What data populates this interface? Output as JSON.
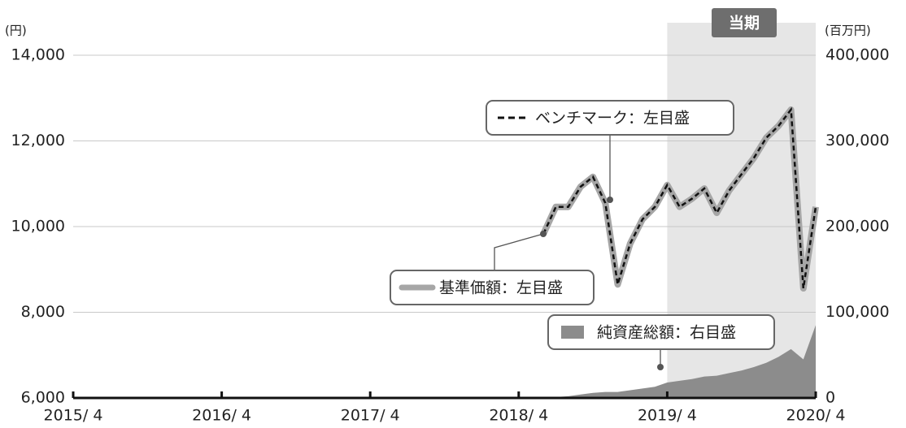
{
  "chart_data": {
    "type": "line",
    "y_axis_unit": "(円)",
    "y2_axis_unit": "(百万円)",
    "xlim": [
      "2015/4",
      "2020/4"
    ],
    "xticks": [
      {
        "value": "2015/4",
        "label": "2015/ 4"
      },
      {
        "value": "2016/4",
        "label": "2016/ 4"
      },
      {
        "value": "2017/4",
        "label": "2017/ 4"
      },
      {
        "value": "2018/4",
        "label": "2018/ 4"
      },
      {
        "value": "2019/4",
        "label": "2019/ 4"
      },
      {
        "value": "2020/4",
        "label": "2020/ 4"
      }
    ],
    "ylim": [
      6000,
      14000
    ],
    "yticks": [
      {
        "value": 6000,
        "label": "6,000"
      },
      {
        "value": 8000,
        "label": "8,000"
      },
      {
        "value": 10000,
        "label": "10,000"
      },
      {
        "value": 12000,
        "label": "12,000"
      },
      {
        "value": 14000,
        "label": "14,000"
      }
    ],
    "y2lim": [
      0,
      400000
    ],
    "y2ticks": [
      0,
      {
        "value": 100000,
        "label": "100,000"
      },
      {
        "value": 200000,
        "label": "200,000"
      },
      {
        "value": 300000,
        "label": "300,000"
      },
      {
        "value": 400000,
        "label": "400,000"
      }
    ],
    "grid": true,
    "shade": {
      "from": "2019/4",
      "to": "2020/4",
      "label": "当期",
      "color": "#e6e6e6"
    },
    "x": [
      "2018/6",
      "2018/7",
      "2018/8",
      "2018/9",
      "2018/10",
      "2018/11",
      "2018/12",
      "2019/1",
      "2019/2",
      "2019/3",
      "2019/4",
      "2019/5",
      "2019/6",
      "2019/7",
      "2019/8",
      "2019/9",
      "2019/10",
      "2019/11",
      "2019/12",
      "2020/1",
      "2020/2",
      "2020/3",
      "2020/4"
    ],
    "series": [
      {
        "name": "純資産総額：右目盛",
        "color": "#8c8c8c",
        "kind": "area",
        "axis": "y2",
        "values": [
          0,
          1000,
          2000,
          4000,
          6000,
          7000,
          7000,
          9000,
          11000,
          13000,
          18000,
          20000,
          22000,
          25000,
          26000,
          29000,
          32000,
          36000,
          41000,
          48000,
          57000,
          45000,
          85000
        ]
      },
      {
        "name": "基準価額：左目盛",
        "color": "#a6a6a6",
        "kind": "thick",
        "values": [
          9830,
          10460,
          10460,
          10930,
          11160,
          10550,
          8650,
          9600,
          10170,
          10460,
          10970,
          10460,
          10650,
          10890,
          10320,
          10840,
          11220,
          11600,
          12070,
          12350,
          12730,
          8560,
          10460
        ]
      },
      {
        "name": "ベンチマーク：左目盛",
        "color": "#111111",
        "kind": "dashed",
        "values": [
          9830,
          10460,
          10460,
          10930,
          11160,
          10550,
          8650,
          9600,
          10170,
          10460,
          10970,
          10460,
          10650,
          10890,
          10320,
          10840,
          11220,
          11600,
          12070,
          12350,
          12730,
          8560,
          10460
        ]
      }
    ]
  }
}
